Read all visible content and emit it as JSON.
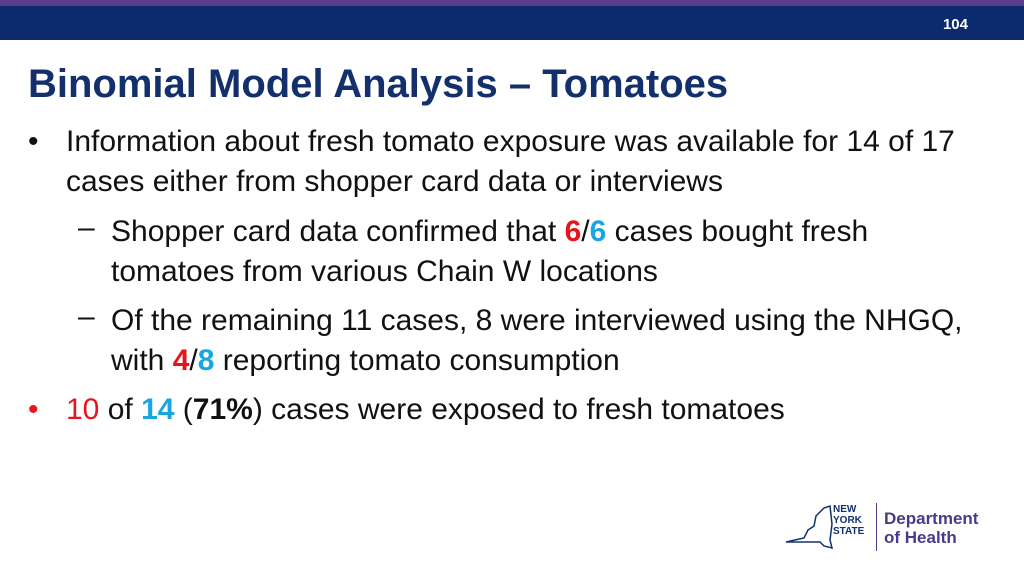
{
  "header": {
    "page_number": "104"
  },
  "title": "Binomial Model Analysis – Tomatoes",
  "bullets": [
    {
      "segments": [
        "Information about fresh tomato exposure was available for 14 of 17 cases either from shopper card data or interviews"
      ],
      "sub_bullets": [
        {
          "segments": [
            "Shopper card data confirmed that ",
            "6",
            "/",
            "6",
            " cases bought fresh tomatoes from various Chain W locations"
          ]
        },
        {
          "segments": [
            "Of the remaining 11 cases, 8 were interviewed using the NHGQ, with ",
            "4",
            "/",
            "8",
            " reporting tomato consumption"
          ]
        }
      ]
    },
    {
      "segments": [
        "10",
        " of ",
        "14",
        " (",
        "71%",
        ") cases were exposed to fresh tomatoes"
      ]
    }
  ],
  "logo": {
    "state": [
      "NEW",
      "YORK",
      "STATE"
    ],
    "department": [
      "Department",
      "of Health"
    ]
  }
}
